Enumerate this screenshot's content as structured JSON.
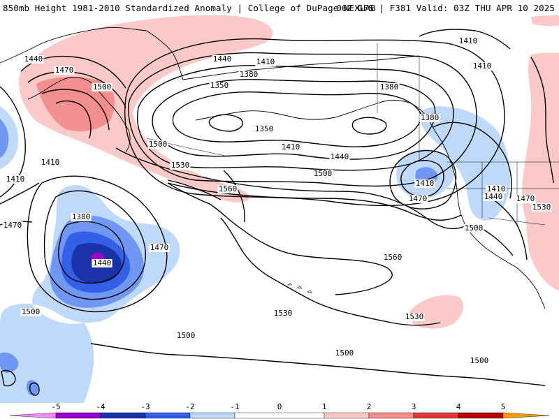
{
  "header": {
    "title": "850mb Height 1981-2010 Standardized Anomaly | College of DuPage NEXLAB",
    "run_info": "06Z GFS | F381 Valid: 03Z THU APR 10 2025"
  },
  "colors": {
    "neg5": "#ff88ff",
    "neg4_5": "#9900cc",
    "neg4": "#1a33aa",
    "neg3": "#3360e6",
    "neg2": "#6f97f3",
    "neg1": "#bfd9fb",
    "zero": "#ffffff",
    "pos1": "#fcc9c9",
    "pos2": "#f58f8f",
    "pos3": "#e23a3a",
    "pos4": "#b30000",
    "pos5": "#ff9900",
    "pos5b": "#ffd200"
  },
  "legend": {
    "ticks": [
      "-5",
      "-4",
      "-3",
      "-2",
      "-1",
      "0",
      "1",
      "2",
      "3",
      "4",
      "5"
    ]
  },
  "contour_labels": [
    {
      "text": "1440",
      "name": "label-1440-nw"
    },
    {
      "text": "1470",
      "name": "label-1470-nw"
    },
    {
      "text": "1500",
      "name": "label-1500-siberia"
    },
    {
      "text": "1440",
      "name": "label-1440-alaska"
    },
    {
      "text": "1410",
      "name": "label-1410-alaska"
    },
    {
      "text": "1380",
      "name": "label-1380-alaska"
    },
    {
      "text": "1350",
      "name": "label-1350"
    },
    {
      "text": "1380",
      "name": "label-1380-gulf"
    },
    {
      "text": "1410",
      "name": "label-1410-canada-north"
    },
    {
      "text": "1410",
      "name": "label-1410-canada"
    },
    {
      "text": "1380",
      "name": "label-1380-bc"
    },
    {
      "text": "1350",
      "name": "label-1350-bering"
    },
    {
      "text": "1410",
      "name": "label-1410-mid"
    },
    {
      "text": "1440",
      "name": "label-1440-mid"
    },
    {
      "text": "1500",
      "name": "label-1500-mid"
    },
    {
      "text": "1470",
      "name": "label-1470-mid"
    },
    {
      "text": "1410",
      "name": "label-1410-low"
    },
    {
      "text": "1410",
      "name": "label-1410-west-a"
    },
    {
      "text": "1410",
      "name": "label-1410-west-b"
    },
    {
      "text": "1470",
      "name": "label-1470-west"
    },
    {
      "text": "1500",
      "name": "label-1500-north"
    },
    {
      "text": "1530",
      "name": "label-1530-north"
    },
    {
      "text": "1560",
      "name": "label-1560-north"
    },
    {
      "text": "1380",
      "name": "label-1380-lowsw"
    },
    {
      "text": "1440",
      "name": "label-1440-lowsw"
    },
    {
      "text": "1470",
      "name": "label-1470-lowsw"
    },
    {
      "text": "1500",
      "name": "label-1500-west"
    },
    {
      "text": "1560",
      "name": "label-1560-high"
    },
    {
      "text": "1530",
      "name": "label-1530-south-a"
    },
    {
      "text": "1530",
      "name": "label-1530-south-b"
    },
    {
      "text": "1500",
      "name": "label-1500-south-a"
    },
    {
      "text": "1500",
      "name": "label-1500-south-b"
    },
    {
      "text": "1500",
      "name": "label-1500-south-c"
    },
    {
      "text": "1500",
      "name": "label-1500-calif"
    },
    {
      "text": "1410",
      "name": "label-1410-interior"
    },
    {
      "text": "1440",
      "name": "label-1440-interior"
    },
    {
      "text": "1470",
      "name": "label-1470-interior"
    },
    {
      "text": "1530",
      "name": "label-1530-east"
    }
  ]
}
